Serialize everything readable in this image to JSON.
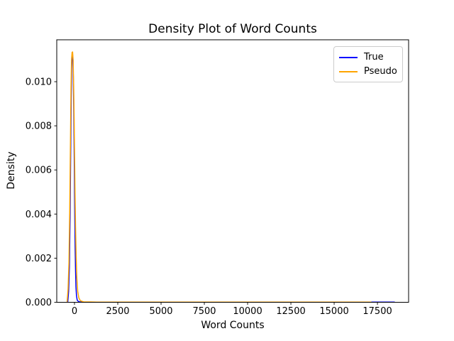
{
  "figure": {
    "background": "#ffffff",
    "spine_color": "#000000",
    "tick_color": "#000000"
  },
  "chart_data": {
    "type": "line",
    "title": "Density Plot of Word Counts",
    "xlabel": "Word Counts",
    "ylabel": "Density",
    "xlim": [
      -1025,
      19300
    ],
    "ylim": [
      0,
      0.0119
    ],
    "grid": false,
    "x_ticks": [
      0,
      2500,
      5000,
      7500,
      10000,
      12500,
      15000,
      17500
    ],
    "x_tick_labels": [
      "0",
      "2500",
      "5000",
      "7500",
      "10000",
      "12500",
      "15000",
      "17500"
    ],
    "y_ticks": [
      0.0,
      0.002,
      0.004,
      0.006,
      0.008,
      0.01
    ],
    "y_tick_labels": [
      "0.000",
      "0.002",
      "0.004",
      "0.006",
      "0.008",
      "0.010"
    ],
    "legend": {
      "position": "upper right",
      "items": [
        {
          "label": "True",
          "color": "#0000ff"
        },
        {
          "label": "Pseudo",
          "color": "#ffa500"
        }
      ]
    },
    "series": [
      {
        "name": "True",
        "color": "#0000ff",
        "peak": 0.01125,
        "points": [
          [
            -390,
            0.0
          ],
          [
            -340,
            0.0005
          ],
          [
            -295,
            0.0016
          ],
          [
            -255,
            0.0038
          ],
          [
            -220,
            0.0068
          ],
          [
            -190,
            0.0092
          ],
          [
            -165,
            0.0106
          ],
          [
            -140,
            0.0112
          ],
          [
            -115,
            0.01125
          ],
          [
            -90,
            0.011
          ],
          [
            -65,
            0.0101
          ],
          [
            -40,
            0.0086
          ],
          [
            -18,
            0.0068
          ],
          [
            0,
            0.0053
          ],
          [
            20,
            0.0037
          ],
          [
            40,
            0.0024
          ],
          [
            62,
            0.0014
          ],
          [
            85,
            0.0007
          ],
          [
            115,
            0.0003
          ],
          [
            155,
            0.0001
          ],
          [
            230,
            3e-05
          ],
          [
            400,
            1e-05
          ],
          [
            1000,
            6e-06
          ],
          [
            4000,
            5e-06
          ],
          [
            10000,
            5e-06
          ],
          [
            15000,
            6e-06
          ],
          [
            17200,
            8e-06
          ],
          [
            18100,
            1e-05
          ],
          [
            18500,
            6e-06
          ]
        ]
      },
      {
        "name": "Pseudo",
        "color": "#ffa500",
        "peak": 0.01135,
        "points": [
          [
            -430,
            0.0
          ],
          [
            -370,
            0.0006
          ],
          [
            -320,
            0.0018
          ],
          [
            -275,
            0.0042
          ],
          [
            -235,
            0.0072
          ],
          [
            -200,
            0.0097
          ],
          [
            -170,
            0.011
          ],
          [
            -140,
            0.01133
          ],
          [
            -110,
            0.01135
          ],
          [
            -80,
            0.011
          ],
          [
            -50,
            0.0099
          ],
          [
            -20,
            0.0083
          ],
          [
            5,
            0.0066
          ],
          [
            30,
            0.005
          ],
          [
            60,
            0.0034
          ],
          [
            95,
            0.0021
          ],
          [
            135,
            0.0011
          ],
          [
            185,
            0.0005
          ],
          [
            250,
            0.0002
          ],
          [
            340,
            7e-05
          ],
          [
            520,
            2e-05
          ],
          [
            1300,
            1e-05
          ],
          [
            5000,
            8e-06
          ],
          [
            11000,
            7e-06
          ],
          [
            15500,
            9e-06
          ],
          [
            17150,
            1e-05
          ]
        ]
      }
    ]
  }
}
